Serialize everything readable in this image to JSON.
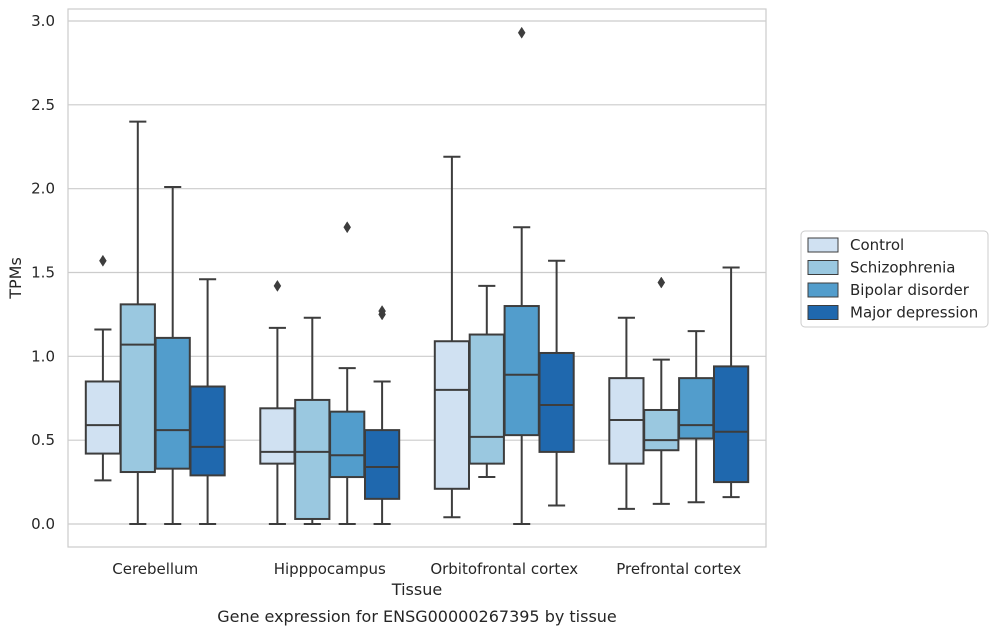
{
  "chart_data": {
    "type": "box",
    "categories": [
      "Cerebellum",
      "Hipppocampus",
      "Orbitofrontal cortex",
      "Prefrontal cortex"
    ],
    "xlabel": "Tissue",
    "ylabel": "TPMs",
    "caption": "Gene expression for ENSG00000267395 by tissue",
    "ylim": [
      -0.14,
      3.08
    ],
    "yticks": [
      "0.0",
      "0.5",
      "1.0",
      "1.5",
      "2.0",
      "2.5",
      "3.0"
    ],
    "grid": true,
    "legend_position": "right",
    "series": [
      {
        "name": "Control",
        "color": "#d0e1f2",
        "boxes": [
          {
            "whisker_low": 0.26,
            "q1": 0.42,
            "median": 0.59,
            "q3": 0.85,
            "whisker_high": 1.16,
            "outliers": [
              1.57
            ]
          },
          {
            "whisker_low": 0.0,
            "q1": 0.36,
            "median": 0.43,
            "q3": 0.69,
            "whisker_high": 1.17,
            "outliers": [
              1.42
            ]
          },
          {
            "whisker_low": 0.04,
            "q1": 0.21,
            "median": 0.8,
            "q3": 1.09,
            "whisker_high": 2.19,
            "outliers": []
          },
          {
            "whisker_low": 0.09,
            "q1": 0.36,
            "median": 0.62,
            "q3": 0.87,
            "whisker_high": 1.23,
            "outliers": []
          }
        ]
      },
      {
        "name": "Schizophrenia",
        "color": "#9ac8e0",
        "boxes": [
          {
            "whisker_low": 0.0,
            "q1": 0.31,
            "median": 1.07,
            "q3": 1.31,
            "whisker_high": 2.4,
            "outliers": []
          },
          {
            "whisker_low": 0.0,
            "q1": 0.03,
            "median": 0.43,
            "q3": 0.74,
            "whisker_high": 1.23,
            "outliers": []
          },
          {
            "whisker_low": 0.28,
            "q1": 0.36,
            "median": 0.52,
            "q3": 1.13,
            "whisker_high": 1.42,
            "outliers": []
          },
          {
            "whisker_low": 0.12,
            "q1": 0.44,
            "median": 0.5,
            "q3": 0.68,
            "whisker_high": 0.98,
            "outliers": [
              1.44
            ]
          }
        ]
      },
      {
        "name": "Bipolar disorder",
        "color": "#529dcc",
        "boxes": [
          {
            "whisker_low": 0.0,
            "q1": 0.33,
            "median": 0.56,
            "q3": 1.11,
            "whisker_high": 2.01,
            "outliers": []
          },
          {
            "whisker_low": 0.0,
            "q1": 0.28,
            "median": 0.41,
            "q3": 0.67,
            "whisker_high": 0.93,
            "outliers": [
              1.77
            ]
          },
          {
            "whisker_low": 0.0,
            "q1": 0.53,
            "median": 0.89,
            "q3": 1.3,
            "whisker_high": 1.77,
            "outliers": [
              2.93
            ]
          },
          {
            "whisker_low": 0.13,
            "q1": 0.51,
            "median": 0.59,
            "q3": 0.87,
            "whisker_high": 1.15,
            "outliers": []
          }
        ]
      },
      {
        "name": "Major depression",
        "color": "#1f68ae",
        "boxes": [
          {
            "whisker_low": 0.0,
            "q1": 0.29,
            "median": 0.46,
            "q3": 0.82,
            "whisker_high": 1.46,
            "outliers": []
          },
          {
            "whisker_low": 0.0,
            "q1": 0.15,
            "median": 0.34,
            "q3": 0.56,
            "whisker_high": 0.85,
            "outliers": [
              1.25,
              1.27
            ]
          },
          {
            "whisker_low": 0.11,
            "q1": 0.43,
            "median": 0.71,
            "q3": 1.02,
            "whisker_high": 1.57,
            "outliers": []
          },
          {
            "whisker_low": 0.16,
            "q1": 0.25,
            "median": 0.55,
            "q3": 0.94,
            "whisker_high": 1.53,
            "outliers": []
          }
        ]
      }
    ]
  }
}
